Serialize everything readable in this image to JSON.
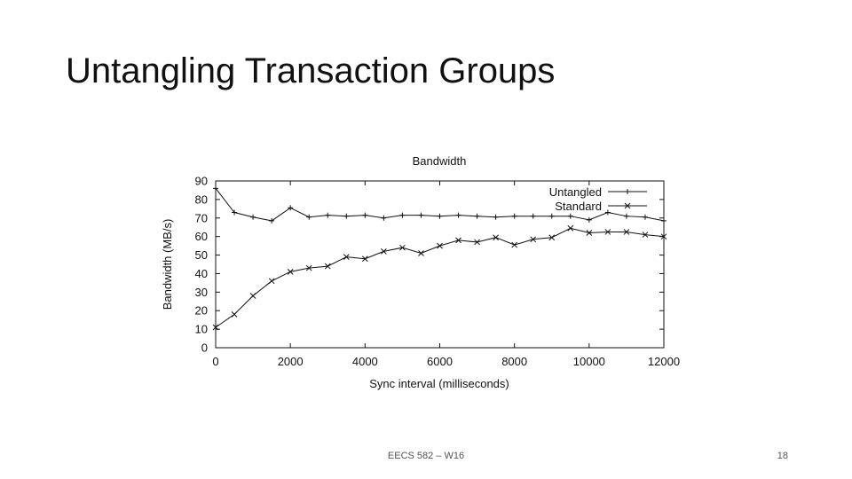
{
  "slide": {
    "title": "Untangling Transaction Groups",
    "footer": "EECS 582 – W16",
    "page_number": "18"
  },
  "chart_data": {
    "type": "line",
    "title": "Bandwidth",
    "xlabel": "Sync interval (milliseconds)",
    "ylabel": "Bandwidth (MB/s)",
    "xlim": [
      0,
      12000
    ],
    "ylim": [
      0,
      90
    ],
    "xticks": [
      0,
      2000,
      4000,
      6000,
      8000,
      10000,
      12000
    ],
    "yticks": [
      0,
      10,
      20,
      30,
      40,
      50,
      60,
      70,
      80,
      90
    ],
    "grid": false,
    "legend_position": "top-right",
    "x": [
      0,
      500,
      1000,
      1500,
      2000,
      2500,
      3000,
      3500,
      4000,
      4500,
      5000,
      5500,
      6000,
      6500,
      7000,
      7500,
      8000,
      8500,
      9000,
      9500,
      10000,
      10500,
      11000,
      11500,
      12000
    ],
    "series": [
      {
        "name": "Untangled",
        "marker": "+",
        "values": [
          86,
          73,
          70.5,
          68.5,
          75.5,
          70.5,
          71.5,
          71,
          71.5,
          70,
          71.5,
          71.5,
          71,
          71.5,
          71,
          70.5,
          71,
          71,
          71,
          71,
          69,
          73,
          71,
          70.5,
          68.5
        ]
      },
      {
        "name": "Standard",
        "marker": "x",
        "values": [
          11,
          18,
          28,
          36,
          41,
          43,
          44,
          49,
          48,
          52,
          54,
          51,
          55,
          58,
          57,
          59.5,
          55.5,
          58.5,
          59.5,
          64.5,
          62,
          62.5,
          62.5,
          61,
          60
        ]
      }
    ]
  }
}
